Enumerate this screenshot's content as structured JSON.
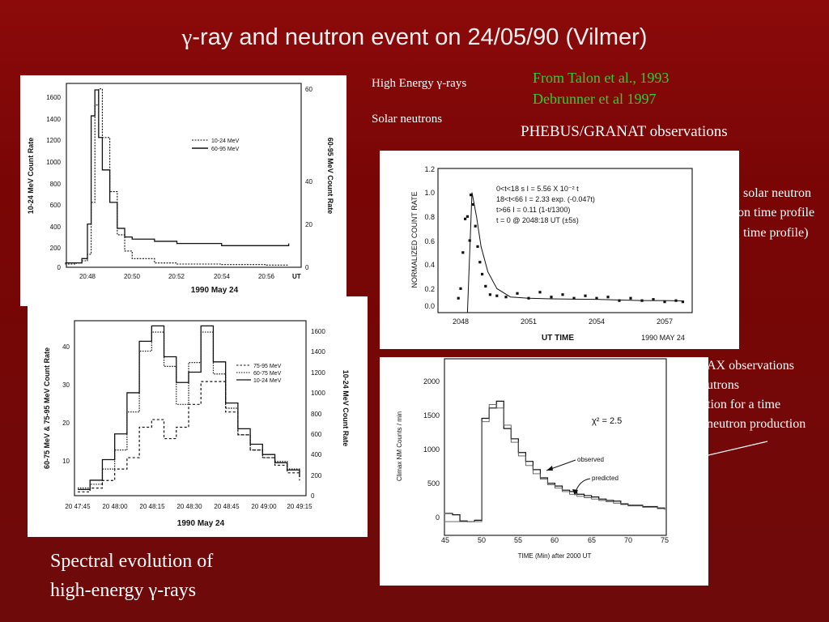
{
  "slide": {
    "title_prefix": "γ",
    "title_rest": "-ray and neutron event on 24/05/90 (Vilmer)",
    "label_gamma_pre": "High Energy ",
    "label_gamma_sym": "γ",
    "label_gamma_post": "-rays",
    "label_neutrons": "Solar neutrons",
    "source_1": "From Talon et al., 1993",
    "source_2": "Debrunner et al 1997",
    "phebus_label": "PHEBUS/GRANAT observations",
    "right_text_1": "solar neutron",
    "right_text_2": "on time profile",
    "right_text_3": "time profile)",
    "climax_text_1": "AX observations",
    "climax_text_2": "utrons",
    "climax_text_3": "tion for a time",
    "climax_text_4": "neutron production",
    "caption_line1": "Spectral evolution of",
    "caption_line2_pre": "high-energy ",
    "caption_line2_sym": "γ",
    "caption_line2_post": "-rays"
  },
  "chart_data": [
    {
      "type": "line",
      "legend": [
        "10-24 MeV",
        "60-95 MeV"
      ],
      "ylabel": "10-24 MeV Count Rate",
      "y2label": "60-95 MeV Count Rate",
      "xlabel": "1990 May 24",
      "x_unit": "UT",
      "xticks": [
        "20:48",
        "20:50",
        "20:52",
        "20:54",
        "20:56"
      ],
      "yticks": [
        "0",
        "200",
        "400",
        "600",
        "800",
        "1000",
        "1200",
        "1400",
        "1600"
      ],
      "y2ticks": [
        "0",
        "20",
        "40",
        "60"
      ],
      "ylim": [
        0,
        1700
      ],
      "y2lim": [
        0,
        85
      ],
      "series": [
        {
          "name": "10-24 MeV",
          "x": [
            "20:47:00",
            "20:47:30",
            "20:47:45",
            "20:48:00",
            "20:48:10",
            "20:48:20",
            "20:48:30",
            "20:48:40",
            "20:49:00",
            "20:49:20",
            "20:49:40",
            "20:50:00",
            "20:51:00",
            "20:52:00",
            "20:54:00",
            "20:56:00",
            "20:57:00"
          ],
          "values": [
            30,
            40,
            60,
            120,
            600,
            1500,
            1650,
            1200,
            700,
            300,
            150,
            80,
            40,
            30,
            25,
            20,
            20
          ]
        },
        {
          "name": "60-95 MeV",
          "x": [
            "20:47:00",
            "20:47:30",
            "20:47:45",
            "20:48:00",
            "20:48:10",
            "20:48:20",
            "20:48:30",
            "20:48:40",
            "20:49:00",
            "20:49:20",
            "20:49:40",
            "20:50:00",
            "20:51:00",
            "20:52:00",
            "20:54:00",
            "20:56:00",
            "20:57:00"
          ],
          "values": [
            2,
            2,
            4,
            20,
            70,
            82,
            60,
            45,
            30,
            18,
            14,
            13,
            12,
            11,
            10,
            10,
            11
          ]
        }
      ]
    },
    {
      "type": "line",
      "ylabel": "60-75 MeV & 75-95 MeV Count Rate",
      "y2label": "10-24 MeV Count Rate",
      "xlabel": "1990 May 24",
      "legend": [
        "75-95 MeV",
        "60-75 MeV",
        "10-24 MeV"
      ],
      "xticks": [
        "20 47:45",
        "20 48:00",
        "20 48:15",
        "20 48:30",
        "20 48:45",
        "20 49:00",
        "20 49:15"
      ],
      "yticks": [
        "10",
        "20",
        "30",
        "40"
      ],
      "y2ticks": [
        "0",
        "200",
        "400",
        "600",
        "800",
        "1000",
        "1200",
        "1400",
        "1600"
      ],
      "ylim": [
        0,
        46
      ],
      "y2lim": [
        0,
        1700
      ],
      "series": [
        {
          "name": "75-95 MeV",
          "x": [
            "20 47:45",
            "20 47:50",
            "20 47:55",
            "20 48:00",
            "20 48:05",
            "20 48:10",
            "20 48:15",
            "20 48:20",
            "20 48:25",
            "20 48:30",
            "20 48:35",
            "20 48:40",
            "20 48:45",
            "20 48:50",
            "20 48:55",
            "20 49:00",
            "20 49:05",
            "20 49:10",
            "20 49:15"
          ],
          "values": [
            1,
            2,
            4,
            7,
            10,
            18,
            20,
            15,
            18,
            24,
            30,
            30,
            22,
            16,
            12,
            10,
            8,
            6,
            4
          ]
        },
        {
          "name": "60-75 MeV",
          "x": [
            "20 47:45",
            "20 47:50",
            "20 47:55",
            "20 48:00",
            "20 48:05",
            "20 48:10",
            "20 48:15",
            "20 48:20",
            "20 48:25",
            "20 48:30",
            "20 48:35",
            "20 48:40",
            "20 48:45",
            "20 48:50",
            "20 48:55",
            "20 49:00",
            "20 49:05",
            "20 49:10",
            "20 49:15"
          ],
          "values": [
            2,
            3,
            7,
            12,
            22,
            38,
            43,
            34,
            24,
            35,
            43,
            32,
            23,
            16,
            12,
            10,
            9,
            7,
            6
          ]
        },
        {
          "name": "10-24 MeV",
          "x": [
            "20 47:45",
            "20 47:50",
            "20 47:55",
            "20 48:00",
            "20 48:05",
            "20 48:10",
            "20 48:15",
            "20 48:20",
            "20 48:25",
            "20 48:30",
            "20 48:35",
            "20 48:40",
            "20 48:45",
            "20 48:50",
            "20 48:55",
            "20 49:00",
            "20 49:05",
            "20 49:10",
            "20 49:15"
          ],
          "values": [
            60,
            150,
            350,
            600,
            1000,
            1500,
            1650,
            1350,
            1100,
            1200,
            1650,
            1300,
            900,
            650,
            500,
            400,
            320,
            250,
            180
          ]
        }
      ]
    },
    {
      "type": "scatter",
      "ylabel": "NORMALIZED COUNT RATE",
      "xlabel": "UT TIME",
      "date_label": "1990 MAY 24",
      "xticks": [
        "2048",
        "2051",
        "2054",
        "2057"
      ],
      "yticks": [
        "0.0",
        "0.2",
        "0.4",
        "0.6",
        "0.8",
        "1.0",
        "1.2"
      ],
      "ylim": [
        0,
        1.2
      ],
      "annotations": [
        "0<t<18 s    I = 5.56 X 10⁻² t",
        "18<t<66     I = 2.33 exp. (-0.047t)",
        "t>66        I = 0.11 (1-t/1300)",
        "t = 0 @ 2048:18 UT (±5s)"
      ],
      "points_x_ut": [
        2047.9,
        2048.0,
        2048.1,
        2048.2,
        2048.3,
        2048.4,
        2048.45,
        2048.55,
        2048.65,
        2048.75,
        2048.85,
        2048.95,
        2049.1,
        2049.3,
        2049.6,
        2050.0,
        2050.5,
        2051.0,
        2051.5,
        2052.0,
        2052.5,
        2053.0,
        2053.5,
        2054.0,
        2054.5,
        2055.0,
        2055.5,
        2056.0,
        2056.5,
        2057.0,
        2057.5,
        2057.8
      ],
      "points_y": [
        0.12,
        0.2,
        0.5,
        0.78,
        0.8,
        0.6,
        0.98,
        0.9,
        0.72,
        0.55,
        0.42,
        0.32,
        0.22,
        0.15,
        0.14,
        0.13,
        0.16,
        0.12,
        0.17,
        0.13,
        0.15,
        0.12,
        0.14,
        0.12,
        0.13,
        0.1,
        0.12,
        0.1,
        0.11,
        0.09,
        0.1,
        0.09
      ],
      "fit_x_ut": [
        2048.3,
        2048.5,
        2048.7,
        2048.9,
        2049.2,
        2049.6,
        2050.2,
        2051.0,
        2052.0,
        2053.0,
        2054.0,
        2055.0,
        2056.0,
        2057.0,
        2057.8
      ],
      "fit_y": [
        0.0,
        1.0,
        0.8,
        0.55,
        0.34,
        0.2,
        0.13,
        0.12,
        0.115,
        0.112,
        0.11,
        0.105,
        0.1,
        0.1,
        0.098
      ]
    },
    {
      "type": "line",
      "ylabel": "Climax NM Counts / min",
      "xlabel": "TIME (Min) after 2000 UT",
      "xticks": [
        "45",
        "50",
        "55",
        "60",
        "65",
        "70",
        "75"
      ],
      "yticks": [
        "0",
        "500",
        "1000",
        "1500",
        "2000"
      ],
      "ylim": [
        -150,
        2150
      ],
      "xlim": [
        44,
        76
      ],
      "chi_label": "χ² = 2.5",
      "observed_label": "observed",
      "predicted_label": "predicted",
      "series": [
        {
          "name": "observed",
          "x": [
            45,
            46,
            47,
            48,
            49,
            50,
            51,
            52,
            53,
            54,
            55,
            56,
            57,
            58,
            59,
            60,
            61,
            62,
            63,
            64,
            65,
            66,
            67,
            68,
            69,
            70,
            72,
            74,
            75
          ],
          "values": [
            60,
            40,
            -50,
            -60,
            -40,
            1450,
            1600,
            1700,
            1300,
            1150,
            950,
            820,
            700,
            580,
            500,
            460,
            400,
            380,
            340,
            320,
            300,
            270,
            250,
            240,
            200,
            180,
            160,
            140,
            120
          ]
        },
        {
          "name": "predicted",
          "x": [
            45,
            46,
            47,
            48,
            49,
            50,
            51,
            52,
            53,
            54,
            55,
            56,
            57,
            58,
            59,
            60,
            61,
            62,
            63,
            64,
            65,
            66,
            67,
            68,
            69,
            70,
            72,
            74,
            75
          ],
          "values": [
            -60,
            -60,
            -60,
            -60,
            -60,
            1400,
            1650,
            1600,
            1350,
            1100,
            900,
            760,
            640,
            560,
            480,
            430,
            380,
            340,
            310,
            290,
            270,
            250,
            230,
            210,
            190,
            170,
            150,
            130,
            110
          ]
        }
      ]
    }
  ]
}
